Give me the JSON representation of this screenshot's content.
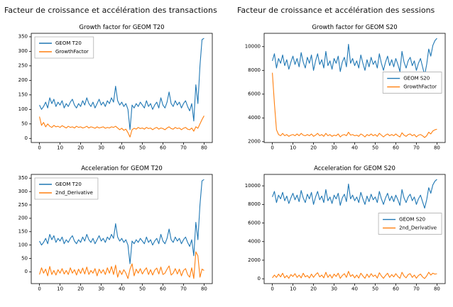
{
  "page": {
    "left_header": "Facteur de croissance et accélération des transactions",
    "right_header": "Facteur de croissance et accélération des sessions"
  },
  "colors": {
    "blue": "#1f77b4",
    "orange": "#ff7f0e"
  },
  "series_values": {
    "t20": [
      115,
      100,
      110,
      125,
      105,
      140,
      120,
      135,
      110,
      125,
      115,
      130,
      105,
      120,
      110,
      125,
      135,
      115,
      105,
      120,
      110,
      130,
      115,
      140,
      120,
      110,
      125,
      105,
      120,
      135,
      115,
      125,
      110,
      130,
      120,
      140,
      125,
      180,
      130,
      115,
      125,
      110,
      120,
      100,
      30,
      115,
      105,
      120,
      110,
      125,
      115,
      105,
      130,
      110,
      120,
      100,
      115,
      125,
      105,
      140,
      115,
      105,
      125,
      160,
      120,
      110,
      130,
      115,
      125,
      105,
      120,
      130,
      110,
      95,
      120,
      60,
      185,
      120,
      250,
      340,
      345
    ],
    "growth_t20": [
      75,
      45,
      55,
      40,
      50,
      42,
      38,
      45,
      40,
      42,
      38,
      44,
      40,
      36,
      42,
      38,
      40,
      36,
      42,
      38,
      40,
      36,
      38,
      42,
      36,
      40,
      38,
      35,
      40,
      36,
      38,
      40,
      35,
      38,
      36,
      40,
      38,
      42,
      36,
      30,
      35,
      28,
      32,
      20,
      5,
      30,
      35,
      32,
      38,
      34,
      36,
      32,
      38,
      34,
      36,
      30,
      35,
      38,
      32,
      36,
      34,
      30,
      36,
      40,
      34,
      32,
      38,
      34,
      36,
      30,
      35,
      38,
      32,
      30,
      36,
      25,
      40,
      35,
      50,
      65,
      78
    ],
    "deriv_t20": [
      -10,
      15,
      -5,
      10,
      -15,
      20,
      -10,
      5,
      -12,
      8,
      -5,
      12,
      -8,
      5,
      -10,
      15,
      -5,
      8,
      -12,
      10,
      -6,
      14,
      -8,
      18,
      -10,
      5,
      -5,
      12,
      -15,
      10,
      -5,
      8,
      -10,
      15,
      -5,
      20,
      -10,
      25,
      -20,
      5,
      -10,
      8,
      -5,
      -25,
      10,
      30,
      -15,
      10,
      -5,
      12,
      -8,
      5,
      15,
      -10,
      8,
      -12,
      6,
      14,
      -8,
      18,
      -10,
      -5,
      10,
      22,
      -12,
      -5,
      12,
      -8,
      10,
      -15,
      5,
      12,
      -10,
      -20,
      15,
      -25,
      75,
      60,
      -20,
      10,
      5
    ],
    "s20": [
      8800,
      9400,
      8200,
      9000,
      8600,
      9300,
      8400,
      8900,
      8100,
      8700,
      9200,
      8500,
      9000,
      8300,
      9500,
      8700,
      8200,
      9100,
      8600,
      9300,
      8000,
      8800,
      9400,
      8500,
      8900,
      8200,
      9600,
      8400,
      8800,
      8100,
      9000,
      8600,
      9200,
      7900,
      8700,
      9100,
      8300,
      10200,
      8600,
      9000,
      8400,
      8800,
      8200,
      9300,
      8600,
      8000,
      8900,
      8300,
      9100,
      8500,
      8800,
      8200,
      9400,
      8600,
      8000,
      8700,
      9200,
      8400,
      8900,
      8300,
      9000,
      8500,
      7900,
      9600,
      8700,
      8200,
      8800,
      9100,
      8400,
      8800,
      8000,
      8600,
      9000,
      8300,
      7600,
      8500,
      9800,
      9200,
      10100,
      10500,
      10700
    ],
    "growth_s20": [
      7800,
      5200,
      3000,
      2600,
      2500,
      2700,
      2500,
      2600,
      2450,
      2550,
      2600,
      2500,
      2650,
      2500,
      2700,
      2550,
      2500,
      2600,
      2500,
      2650,
      2450,
      2550,
      2700,
      2500,
      2600,
      2450,
      2700,
      2500,
      2600,
      2450,
      2550,
      2500,
      2650,
      2400,
      2550,
      2600,
      2500,
      2800,
      2550,
      2600,
      2500,
      2550,
      2450,
      2650,
      2550,
      2400,
      2600,
      2500,
      2650,
      2500,
      2600,
      2450,
      2700,
      2550,
      2400,
      2550,
      2650,
      2500,
      2600,
      2500,
      2650,
      2500,
      2400,
      2750,
      2550,
      2450,
      2600,
      2650,
      2500,
      2600,
      2400,
      2550,
      2600,
      2500,
      2350,
      2500,
      2800,
      2650,
      2900,
      3000,
      3050
    ],
    "deriv_s20": [
      100,
      400,
      150,
      500,
      200,
      600,
      100,
      350,
      50,
      450,
      250,
      550,
      150,
      400,
      100,
      600,
      200,
      350,
      80,
      500,
      150,
      450,
      650,
      200,
      400,
      100,
      700,
      150,
      450,
      80,
      500,
      250,
      600,
      50,
      350,
      550,
      150,
      800,
      250,
      450,
      100,
      400,
      80,
      600,
      300,
      50,
      500,
      150,
      550,
      250,
      400,
      80,
      650,
      300,
      50,
      350,
      600,
      150,
      450,
      200,
      550,
      250,
      50,
      700,
      300,
      100,
      450,
      550,
      150,
      400,
      60,
      350,
      500,
      200,
      30,
      300,
      700,
      400,
      600,
      500,
      550
    ]
  },
  "chart_data": [
    {
      "type": "line",
      "title": "Growth factor for GEOM T20",
      "xlim": [
        -4,
        84
      ],
      "ylim": [
        -14,
        362
      ],
      "xticks": [
        0,
        10,
        20,
        30,
        40,
        50,
        60,
        70,
        80
      ],
      "yticks": [
        0,
        50,
        100,
        150,
        200,
        250,
        300,
        350
      ],
      "legend": "upper-left",
      "series": [
        {
          "name": "GEOM T20",
          "color": "#1f77b4",
          "values_key": "t20"
        },
        {
          "name": "GrowthFactor",
          "color": "#ff7f0e",
          "values_key": "growth_t20"
        }
      ]
    },
    {
      "type": "line",
      "title": "Acceleration for GEOM T20",
      "xlim": [
        -4,
        84
      ],
      "ylim": [
        -44,
        364
      ],
      "xticks": [
        0,
        10,
        20,
        30,
        40,
        50,
        60,
        70,
        80
      ],
      "yticks": [
        0,
        50,
        100,
        150,
        200,
        250,
        300,
        350
      ],
      "legend": "upper-left",
      "series": [
        {
          "name": "GEOM T20",
          "color": "#1f77b4",
          "values_key": "t20"
        },
        {
          "name": "2nd_Derivative",
          "color": "#ff7f0e",
          "values_key": "deriv_t20"
        }
      ]
    },
    {
      "type": "line",
      "title": "Growth factor for GEOM S20",
      "xlim": [
        -4,
        84
      ],
      "ylim": [
        1930,
        11120
      ],
      "xticks": [
        0,
        10,
        20,
        30,
        40,
        50,
        60,
        70,
        80
      ],
      "yticks": [
        2000,
        4000,
        6000,
        8000,
        10000
      ],
      "legend": "center-right",
      "series": [
        {
          "name": "GEOM S20",
          "color": "#1f77b4",
          "values_key": "s20"
        },
        {
          "name": "GrowthFactor",
          "color": "#ff7f0e",
          "values_key": "growth_s20"
        }
      ]
    },
    {
      "type": "line",
      "title": "Acceleration for GEOM S20",
      "xlim": [
        -4,
        84
      ],
      "ylim": [
        -520,
        11230
      ],
      "xticks": [
        0,
        10,
        20,
        30,
        40,
        50,
        60,
        70,
        80
      ],
      "yticks": [
        0,
        2000,
        4000,
        6000,
        8000,
        10000
      ],
      "legend": "center-right",
      "series": [
        {
          "name": "GEOM S20",
          "color": "#1f77b4",
          "values_key": "s20"
        },
        {
          "name": "2nd_Derivative",
          "color": "#ff7f0e",
          "values_key": "deriv_s20"
        }
      ]
    }
  ]
}
